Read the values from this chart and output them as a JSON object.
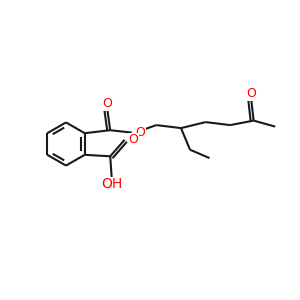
{
  "bg_color": "#ffffff",
  "bond_color": "#1a1a1a",
  "O_color": "#ff0000",
  "line_width": 1.5,
  "font_size": 9,
  "fig_size": [
    3.0,
    3.0
  ],
  "dpi": 100,
  "xlim": [
    0,
    10
  ],
  "ylim": [
    0,
    10
  ]
}
